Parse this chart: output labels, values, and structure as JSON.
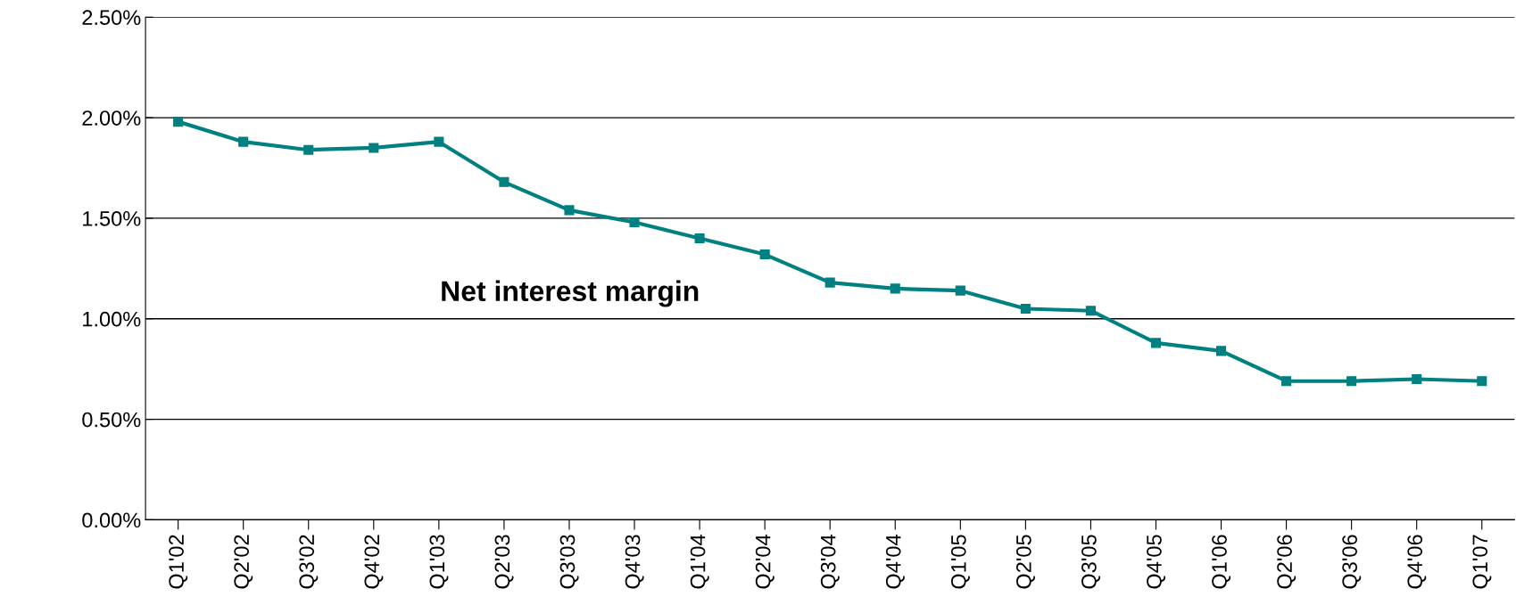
{
  "chart_data": {
    "type": "line",
    "categories": [
      "Q1'02",
      "Q2'02",
      "Q3'02",
      "Q4'02",
      "Q1'03",
      "Q2'03",
      "Q3'03",
      "Q4'03",
      "Q1'04",
      "Q2'04",
      "Q3'04",
      "Q4'04",
      "Q1'05",
      "Q2'05",
      "Q3'05",
      "Q4'05",
      "Q1'06",
      "Q2'06",
      "Q3'06",
      "Q4'06",
      "Q1'07"
    ],
    "series": [
      {
        "name": "Net interest margin",
        "color": "#008080",
        "values": [
          1.98,
          1.88,
          1.84,
          1.85,
          1.88,
          1.68,
          1.54,
          1.48,
          1.4,
          1.32,
          1.18,
          1.15,
          1.14,
          1.05,
          1.04,
          0.88,
          0.84,
          0.69,
          0.69,
          0.7,
          0.69
        ]
      }
    ],
    "ylim": [
      0,
      2.5
    ],
    "yticks": [
      {
        "value": 0,
        "label": "0.00%"
      },
      {
        "value": 0.5,
        "label": "0.50%"
      },
      {
        "value": 1.0,
        "label": "1.00%"
      },
      {
        "value": 1.5,
        "label": "1.50%"
      },
      {
        "value": 2.0,
        "label": "2.00%"
      },
      {
        "value": 2.5,
        "label": "2.50%"
      }
    ],
    "grid": "y",
    "legend": false,
    "marker": "square",
    "line_style": "solid"
  }
}
